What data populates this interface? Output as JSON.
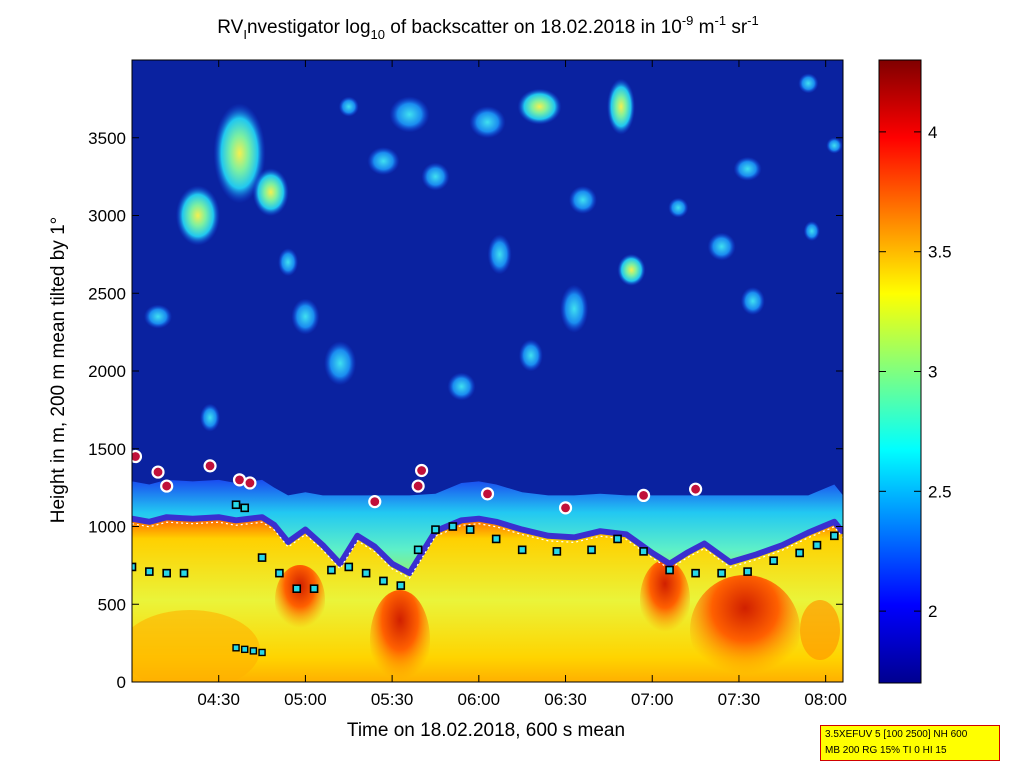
{
  "chart_data": {
    "type": "heatmap",
    "title": {
      "pre": "RV",
      "sub1": "I",
      "mid": "nvestigator log",
      "sub2": "10",
      "rest": " of backscatter on 18.02.2018 in 10",
      "sup1": "-9",
      "unit1": " m",
      "sup2": "-1",
      "unit2": " sr",
      "sup3": "-1"
    },
    "xlabel": "Time on 18.02.2018, 600 s mean",
    "ylabel": "Height in m, 200 m mean tilted by 1°",
    "x_ticks": [
      "04:30",
      "05:00",
      "05:30",
      "06:00",
      "06:30",
      "07:00",
      "07:30",
      "08:00"
    ],
    "x_tick_hours": [
      4.5,
      5.0,
      5.5,
      6.0,
      6.5,
      7.0,
      7.5,
      8.0
    ],
    "xlim_hours": [
      4.0,
      8.1
    ],
    "y_ticks": [
      "0",
      "500",
      "1000",
      "1500",
      "2000",
      "2500",
      "3000",
      "3500"
    ],
    "y_tick_values": [
      0,
      500,
      1000,
      1500,
      2000,
      2500,
      3000,
      3500
    ],
    "ylim": [
      0,
      4000
    ],
    "colorbar": {
      "ticks": [
        "2",
        "2.5",
        "3",
        "3.5",
        "4"
      ],
      "tick_values": [
        2.0,
        2.5,
        3.0,
        3.5,
        4.0
      ],
      "range": [
        1.7,
        4.3
      ]
    },
    "cloud_base_profile": {
      "x_hours": [
        4.0,
        4.1,
        4.2,
        4.35,
        4.5,
        4.6,
        4.75,
        4.82,
        4.9,
        5.0,
        5.1,
        5.2,
        5.3,
        5.4,
        5.5,
        5.6,
        5.75,
        5.9,
        6.0,
        6.1,
        6.25,
        6.4,
        6.55,
        6.7,
        6.85,
        7.0,
        7.1,
        7.2,
        7.3,
        7.45,
        7.6,
        7.75,
        7.9,
        8.05,
        8.1
      ],
      "heights_m": [
        1050,
        1030,
        1060,
        1050,
        1060,
        1040,
        1060,
        1010,
        900,
        980,
        880,
        760,
        940,
        870,
        760,
        700,
        970,
        1040,
        1050,
        1030,
        980,
        940,
        930,
        970,
        950,
        830,
        760,
        830,
        890,
        770,
        820,
        880,
        960,
        1030,
        960
      ]
    },
    "black_square_layer": {
      "x_hours": [
        4.0,
        4.1,
        4.2,
        4.3,
        4.6,
        4.65,
        4.75,
        4.85,
        4.95,
        5.05,
        5.15,
        5.25,
        5.35,
        5.45,
        5.55,
        5.65,
        5.75,
        5.85,
        5.95,
        6.1,
        6.25,
        6.45,
        6.65,
        6.8,
        6.95,
        7.1,
        7.25,
        7.4,
        7.55,
        7.7,
        7.85,
        7.95,
        8.05
      ],
      "heights_m": [
        740,
        710,
        700,
        700,
        1140,
        1120,
        800,
        700,
        600,
        600,
        720,
        740,
        700,
        650,
        620,
        850,
        980,
        1000,
        980,
        920,
        850,
        840,
        850,
        920,
        840,
        720,
        700,
        700,
        710,
        780,
        830,
        880,
        940
      ]
    },
    "purple_circles": {
      "x_hours": [
        4.02,
        4.15,
        4.2,
        4.45,
        4.62,
        4.68,
        5.4,
        5.65,
        5.67,
        6.05,
        6.5,
        6.95,
        7.25
      ],
      "heights_m": [
        1450,
        1350,
        1260,
        1390,
        1300,
        1280,
        1160,
        1260,
        1360,
        1210,
        1120,
        1200,
        1240
      ]
    },
    "low_squares": {
      "x_hours": [
        4.6,
        4.65,
        4.7,
        4.75
      ],
      "heights_m": [
        220,
        210,
        200,
        190
      ]
    }
  },
  "info_box": {
    "line1": "3.5XEFUV 5 [100 2500] NH 600",
    "line2": "MB 200 RG 15% TI 0 HI 15"
  },
  "colors": {
    "background_low": "#0a22a0",
    "cloud_top": "#24e0f0",
    "aerosol": "#fff200",
    "hot": "#ff3000",
    "profile_line": "#3a2fd0",
    "circle_edge": "#ffffff",
    "circle_fill": "#c0103a",
    "square_fill": "#28d8e8"
  }
}
